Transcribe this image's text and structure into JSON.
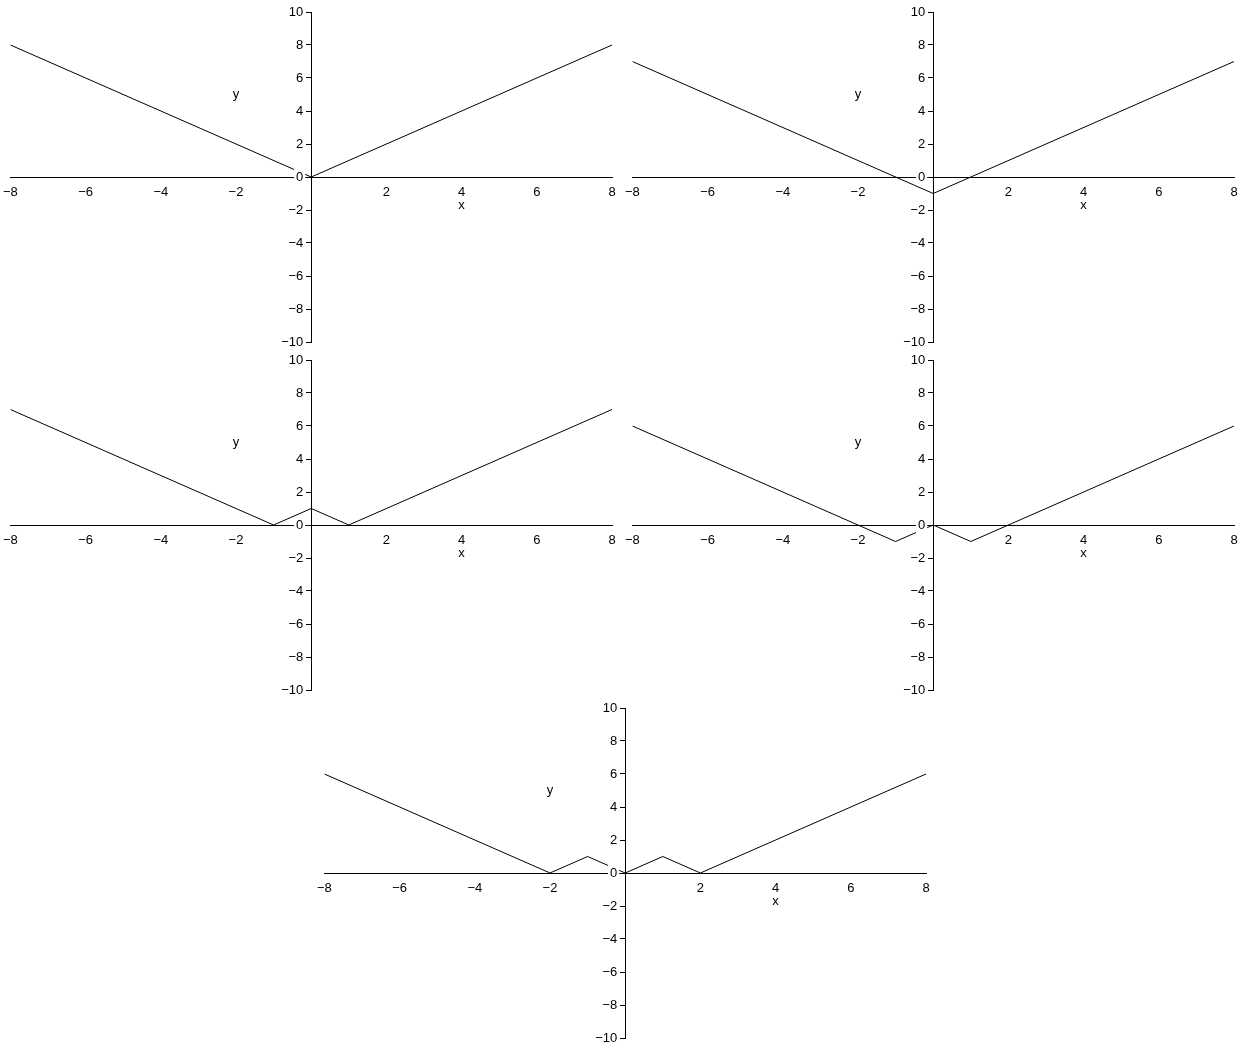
{
  "chart_data": [
    {
      "type": "line",
      "xlabel": "x",
      "ylabel": "y",
      "x": [
        -8,
        0,
        8
      ],
      "values": [
        8,
        0,
        8
      ],
      "color": "#000000",
      "xlim": [
        -8,
        8
      ],
      "ylim": [
        -10,
        10
      ],
      "xticks": [
        -8,
        -6,
        -4,
        -2,
        2,
        4,
        6,
        8
      ],
      "yticks": [
        -10,
        -8,
        -6,
        -4,
        -2,
        0,
        2,
        4,
        6,
        8,
        10
      ],
      "grid": false,
      "legend": false,
      "marker": "none",
      "line_style": "solid"
    },
    {
      "type": "line",
      "xlabel": "x",
      "ylabel": "y",
      "x": [
        -8,
        0,
        8
      ],
      "values": [
        7,
        -1,
        7
      ],
      "color": "#000000",
      "xlim": [
        -8,
        8
      ],
      "ylim": [
        -10,
        10
      ],
      "xticks": [
        -8,
        -6,
        -4,
        -2,
        2,
        4,
        6,
        8
      ],
      "yticks": [
        -10,
        -8,
        -6,
        -4,
        -2,
        0,
        2,
        4,
        6,
        8,
        10
      ],
      "grid": false,
      "legend": false,
      "marker": "none",
      "line_style": "solid"
    },
    {
      "type": "line",
      "xlabel": "x",
      "ylabel": "y",
      "x": [
        -8,
        -1,
        0,
        1,
        8
      ],
      "values": [
        7,
        0,
        1,
        0,
        7
      ],
      "color": "#000000",
      "xlim": [
        -8,
        8
      ],
      "ylim": [
        -10,
        10
      ],
      "xticks": [
        -8,
        -6,
        -4,
        -2,
        2,
        4,
        6,
        8
      ],
      "yticks": [
        -10,
        -8,
        -6,
        -4,
        -2,
        0,
        2,
        4,
        6,
        8,
        10
      ],
      "grid": false,
      "legend": false,
      "marker": "none",
      "line_style": "solid"
    },
    {
      "type": "line",
      "xlabel": "x",
      "ylabel": "y",
      "x": [
        -8,
        -1,
        0,
        1,
        8
      ],
      "values": [
        6,
        -1,
        0,
        -1,
        6
      ],
      "color": "#000000",
      "xlim": [
        -8,
        8
      ],
      "ylim": [
        -10,
        10
      ],
      "xticks": [
        -8,
        -6,
        -4,
        -2,
        2,
        4,
        6,
        8
      ],
      "yticks": [
        -10,
        -8,
        -6,
        -4,
        -2,
        0,
        2,
        4,
        6,
        8,
        10
      ],
      "grid": false,
      "legend": false,
      "marker": "none",
      "line_style": "solid"
    },
    {
      "type": "line",
      "xlabel": "x",
      "ylabel": "y",
      "x": [
        -8,
        -2,
        -1,
        0,
        1,
        2,
        8
      ],
      "values": [
        6,
        0,
        1,
        0,
        1,
        0,
        6
      ],
      "color": "#000000",
      "xlim": [
        -8,
        8
      ],
      "ylim": [
        -10,
        10
      ],
      "xticks": [
        -8,
        -6,
        -4,
        -2,
        2,
        4,
        6,
        8
      ],
      "yticks": [
        -10,
        -8,
        -6,
        -4,
        -2,
        0,
        2,
        4,
        6,
        8,
        10
      ],
      "grid": false,
      "legend": false,
      "marker": "none",
      "line_style": "solid"
    }
  ]
}
